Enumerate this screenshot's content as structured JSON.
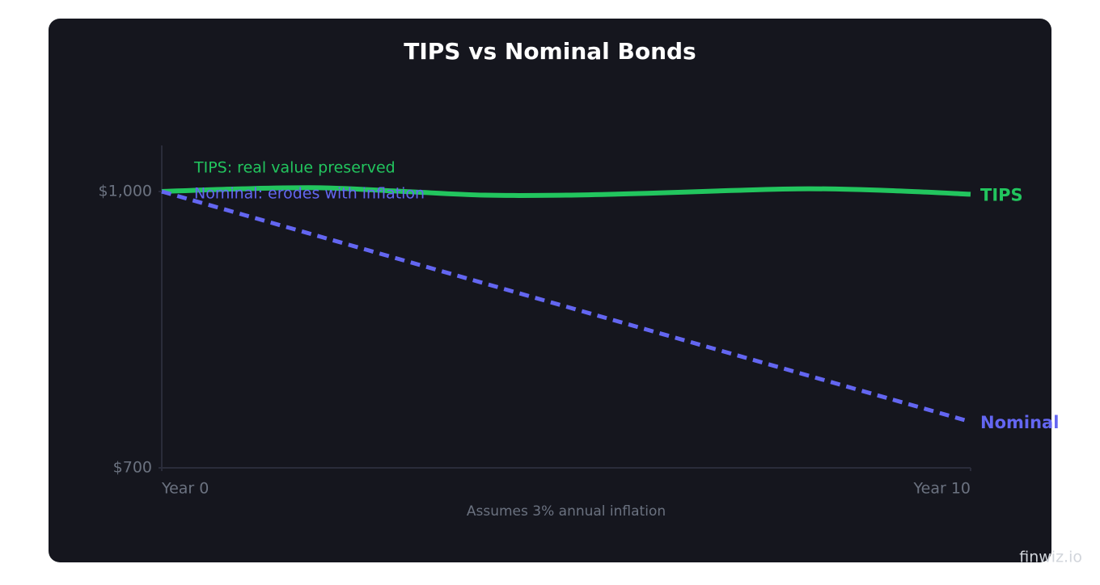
{
  "chart_data": {
    "type": "line",
    "title": "TIPS vs Nominal Bonds",
    "x": [
      0,
      1,
      2,
      3,
      4,
      5,
      6,
      7,
      8,
      9,
      10
    ],
    "series": [
      {
        "name": "TIPS",
        "color": "#22c55e",
        "style": "solid",
        "values": [
          1000,
          1003,
          1004,
          1000,
          996,
          996,
          998,
          1001,
          1003,
          1001,
          997
        ]
      },
      {
        "name": "Nominal",
        "color": "#6366f1",
        "style": "dashed",
        "values": [
          1000,
          975,
          950,
          925,
          900,
          875,
          850,
          825,
          800,
          775,
          750
        ]
      }
    ],
    "annotations": [
      "TIPS: real value preserved",
      "Nominal: erodes with inflation"
    ],
    "xlim": [
      0,
      10
    ],
    "xticks": [
      {
        "value": 0,
        "label": "Year 0"
      },
      {
        "value": 10,
        "label": "Year 10"
      }
    ],
    "ylim": [
      700,
      1050
    ],
    "yticks": [
      {
        "value": 700,
        "label": "$700"
      },
      {
        "value": 1000,
        "label": "$1,000"
      }
    ],
    "footnote": "Assumes 3% annual inflation",
    "watermark": "finwiz.io"
  }
}
